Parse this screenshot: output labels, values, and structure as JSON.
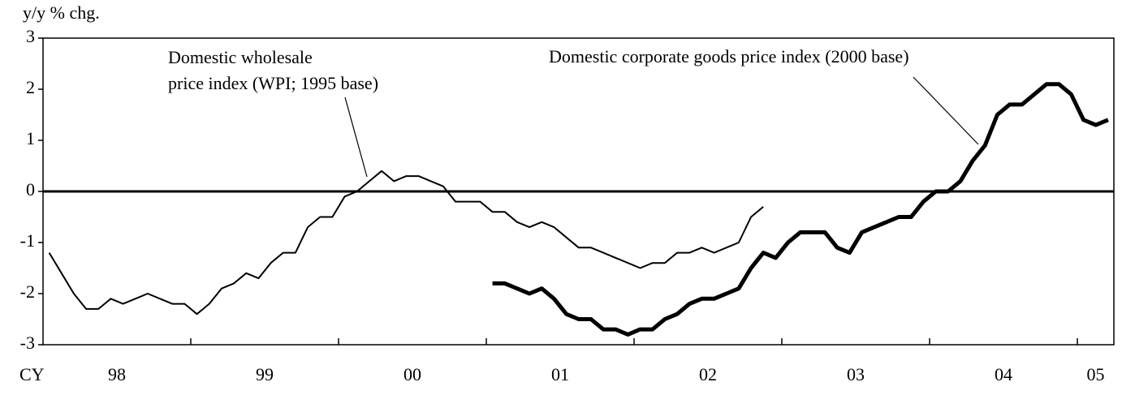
{
  "chart_data": {
    "type": "line",
    "y_label": "y/y % chg.",
    "x_prefix": "CY",
    "x_labels": [
      "98",
      "99",
      "00",
      "01",
      "02",
      "03",
      "04",
      "05"
    ],
    "ylim": [
      -3,
      3
    ],
    "yticks": [
      3,
      2,
      1,
      0,
      -1,
      -2,
      -3
    ],
    "series": [
      {
        "name": [
          "Domestic wholesale",
          "price index (WPI; 1995 base)"
        ],
        "color": "#000000",
        "width": 2,
        "values": [
          -1.2,
          -1.6,
          -2.0,
          -2.3,
          -2.3,
          -2.1,
          -2.2,
          -2.1,
          -2.0,
          -2.1,
          -2.2,
          -2.2,
          -2.4,
          -2.2,
          -1.9,
          -1.8,
          -1.6,
          -1.7,
          -1.4,
          -1.2,
          -1.2,
          -0.7,
          -0.5,
          -0.5,
          -0.1,
          0.0,
          0.2,
          0.4,
          0.2,
          0.3,
          0.3,
          0.2,
          0.1,
          -0.2,
          -0.2,
          -0.2,
          -0.4,
          -0.4,
          -0.6,
          -0.7,
          -0.6,
          -0.7,
          -0.9,
          -1.1,
          -1.1,
          -1.2,
          -1.3,
          -1.4,
          -1.5,
          -1.4,
          -1.4,
          -1.2,
          -1.2,
          -1.1,
          -1.2,
          -1.1,
          -1.0,
          -0.5,
          -0.3,
          null,
          null,
          null,
          null,
          null,
          null,
          null,
          null,
          null,
          null,
          null,
          null,
          null,
          null,
          null,
          null,
          null,
          null,
          null,
          null,
          null,
          null,
          null,
          null,
          null,
          null,
          null,
          null
        ]
      },
      {
        "name": [
          "Domestic corporate goods price index (2000 base)"
        ],
        "color": "#000000",
        "width": 5,
        "values": [
          null,
          null,
          null,
          null,
          null,
          null,
          null,
          null,
          null,
          null,
          null,
          null,
          null,
          null,
          null,
          null,
          null,
          null,
          null,
          null,
          null,
          null,
          null,
          null,
          null,
          null,
          null,
          null,
          null,
          null,
          null,
          null,
          null,
          null,
          null,
          null,
          -1.8,
          -1.8,
          -1.9,
          -2.0,
          -1.9,
          -2.1,
          -2.4,
          -2.5,
          -2.5,
          -2.7,
          -2.7,
          -2.8,
          -2.7,
          -2.7,
          -2.5,
          -2.4,
          -2.2,
          -2.1,
          -2.1,
          -2.0,
          -1.9,
          -1.5,
          -1.2,
          -1.3,
          -1.0,
          -0.8,
          -0.8,
          -0.8,
          -1.1,
          -1.2,
          -0.8,
          -0.7,
          -0.6,
          -0.5,
          -0.5,
          -0.2,
          0.0,
          0.0,
          0.2,
          0.6,
          0.9,
          1.5,
          1.7,
          1.7,
          1.9,
          2.1,
          2.1,
          1.9,
          1.4,
          1.3,
          1.4
        ]
      }
    ]
  }
}
